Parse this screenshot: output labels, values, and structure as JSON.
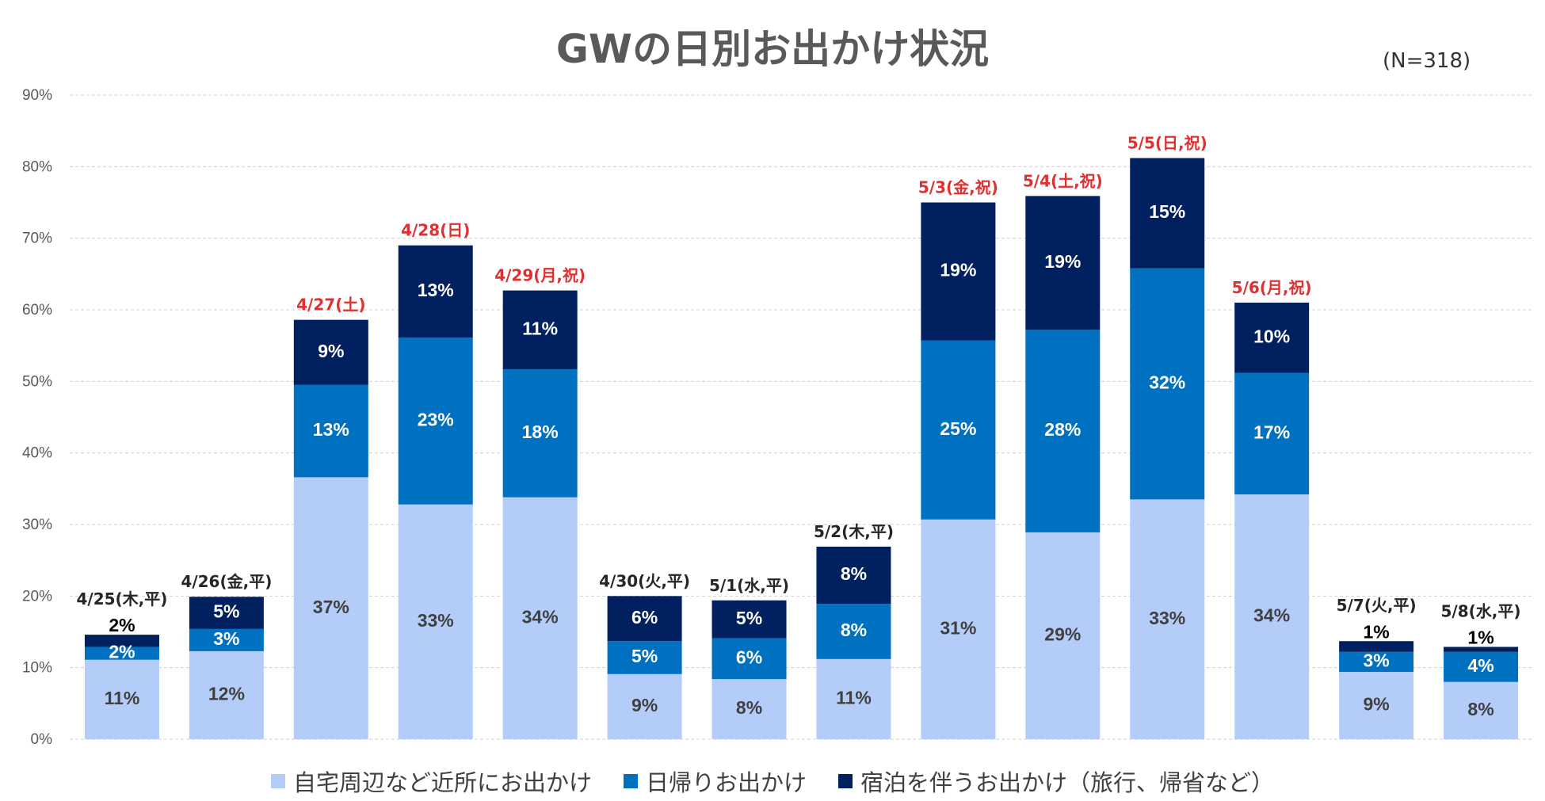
{
  "title": "GWの日別お出かけ状況",
  "sample_note": "(N=318)",
  "colors": {
    "near_home": "#b4cdf8",
    "day_trip": "#0070c0",
    "overnight": "#002060",
    "holiday_label": "#e03030",
    "weekday_label": "#262626",
    "light_text": "#404040",
    "dark_text": "#ffffff"
  },
  "chart_data": {
    "type": "bar",
    "stacked": true,
    "title": "GWの日別お出かけ状況",
    "categories": [
      "4/25(木,平)",
      "4/26(金,平)",
      "4/27(土)",
      "4/28(日)",
      "4/29(月,祝)",
      "4/30(火,平)",
      "5/1(水,平)",
      "5/2(木,平)",
      "5/3(金,祝)",
      "5/4(土,祝)",
      "5/5(日,祝)",
      "5/6(月,祝)",
      "5/7(火,平)",
      "5/8(水,平)"
    ],
    "holiday": [
      false,
      false,
      true,
      true,
      true,
      false,
      false,
      false,
      true,
      true,
      true,
      true,
      false,
      false
    ],
    "series": [
      {
        "name": "自宅周辺など近所にお出かけ",
        "color_key": "near_home",
        "values": [
          11.1,
          12.3,
          36.6,
          32.8,
          33.8,
          9.1,
          8.4,
          11.2,
          30.7,
          28.9,
          33.5,
          34.2,
          9.4,
          8.0
        ],
        "labels": [
          "11%",
          "12%",
          "37%",
          "33%",
          "34%",
          "9%",
          "8%",
          "11%",
          "31%",
          "29%",
          "33%",
          "34%",
          "9%",
          "8%"
        ]
      },
      {
        "name": "日帰りお出かけ",
        "color_key": "day_trip",
        "values": [
          1.8,
          3.1,
          12.9,
          23.3,
          17.9,
          4.6,
          5.7,
          7.7,
          25.0,
          28.3,
          32.3,
          17.0,
          2.8,
          4.2
        ],
        "labels": [
          "2%",
          "3%",
          "13%",
          "23%",
          "18%",
          "5%",
          "6%",
          "8%",
          "25%",
          "28%",
          "32%",
          "17%",
          "3%",
          "4%"
        ]
      },
      {
        "name": "宿泊を伴うお出かけ（旅行、帰省など）",
        "color_key": "overnight",
        "values": [
          1.7,
          4.5,
          9.1,
          12.9,
          11.0,
          6.3,
          5.3,
          8.0,
          19.3,
          18.7,
          15.4,
          9.8,
          1.5,
          0.7
        ],
        "labels": [
          "2%",
          "5%",
          "9%",
          "13%",
          "11%",
          "6%",
          "5%",
          "8%",
          "19%",
          "19%",
          "15%",
          "10%",
          "1%",
          "1%"
        ]
      }
    ],
    "y_ticks": [
      "0%",
      "10%",
      "20%",
      "30%",
      "40%",
      "50%",
      "60%",
      "70%",
      "80%",
      "90%"
    ],
    "ylim": [
      0,
      90
    ],
    "grid": true,
    "legend_position": "bottom"
  }
}
